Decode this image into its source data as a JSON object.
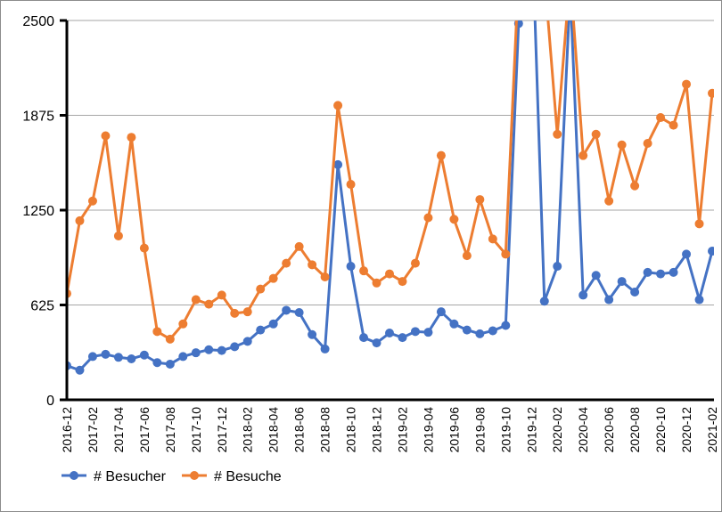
{
  "colors": {
    "besucher": "#4472C4",
    "besuche": "#ED7D31",
    "grid": "#a6a6a6",
    "axis": "#000000"
  },
  "chart_data": {
    "type": "line",
    "ylim": [
      0,
      2500
    ],
    "yticks": [
      0,
      625,
      1250,
      1875,
      2500
    ],
    "xtick_labels": [
      "2016-12",
      "2017-02",
      "2017-04",
      "2017-06",
      "2017-08",
      "2017-10",
      "2017-12",
      "2018-02",
      "2018-04",
      "2018-06",
      "2018-08",
      "2018-10",
      "2018-12",
      "2019-02",
      "2019-04",
      "2019-06",
      "2019-08",
      "2019-10",
      "2019-12",
      "2020-02",
      "2020-04",
      "2020-06",
      "2020-08",
      "2020-10",
      "2020-12",
      "2021-02"
    ],
    "x": [
      "2016-12",
      "2017-01",
      "2017-02",
      "2017-03",
      "2017-04",
      "2017-05",
      "2017-06",
      "2017-07",
      "2017-08",
      "2017-09",
      "2017-10",
      "2017-11",
      "2017-12",
      "2018-01",
      "2018-02",
      "2018-03",
      "2018-04",
      "2018-05",
      "2018-06",
      "2018-07",
      "2018-08",
      "2018-09",
      "2018-10",
      "2018-11",
      "2018-12",
      "2019-01",
      "2019-02",
      "2019-03",
      "2019-04",
      "2019-05",
      "2019-06",
      "2019-07",
      "2019-08",
      "2019-09",
      "2019-10",
      "2019-11",
      "2019-12",
      "2020-01",
      "2020-02",
      "2020-03",
      "2020-04",
      "2020-05",
      "2020-06",
      "2020-07",
      "2020-08",
      "2020-09",
      "2020-10",
      "2020-11",
      "2020-12",
      "2021-01",
      "2021-02"
    ],
    "grid": true,
    "legend": "bottom",
    "series": [
      {
        "name": "# Besucher",
        "color": "#4472C4",
        "values": [
          225,
          195,
          285,
          300,
          280,
          270,
          295,
          245,
          235,
          285,
          310,
          330,
          325,
          350,
          385,
          460,
          500,
          590,
          575,
          430,
          335,
          1550,
          880,
          410,
          375,
          440,
          410,
          450,
          445,
          580,
          500,
          460,
          435,
          455,
          490,
          2480,
          3200,
          650,
          880,
          2700,
          690,
          820,
          660,
          780,
          710,
          840,
          830,
          840,
          960,
          660,
          980
        ]
      },
      {
        "name": "# Besuche",
        "color": "#ED7D31",
        "values": [
          700,
          1180,
          1310,
          1740,
          1080,
          1730,
          1000,
          450,
          400,
          500,
          660,
          630,
          690,
          570,
          580,
          730,
          800,
          900,
          1010,
          890,
          810,
          1940,
          1420,
          850,
          770,
          830,
          780,
          900,
          1200,
          1610,
          1190,
          950,
          1320,
          1060,
          960,
          2800,
          2800,
          2800,
          1750,
          2800,
          1610,
          1750,
          1310,
          1680,
          1410,
          1690,
          1860,
          1810,
          2080,
          1160,
          2020
        ]
      }
    ]
  }
}
